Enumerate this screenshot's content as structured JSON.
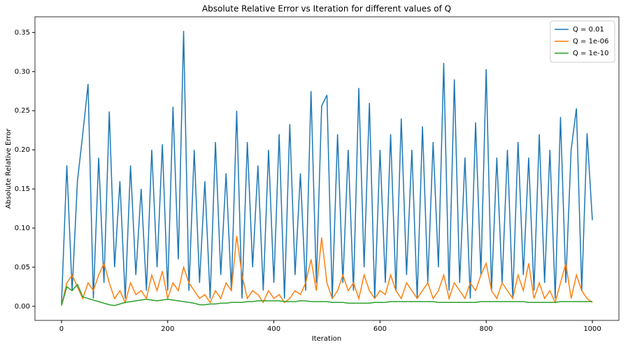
{
  "chart_data": {
    "type": "line",
    "title": "Absolute Relative Error vs Iteration for different values of Q",
    "xlabel": "Iteration",
    "ylabel": "Absolute Relative Error",
    "x": [
      0,
      10,
      20,
      30,
      40,
      50,
      60,
      70,
      80,
      90,
      100,
      110,
      120,
      130,
      140,
      150,
      160,
      170,
      180,
      190,
      200,
      210,
      220,
      230,
      240,
      250,
      260,
      270,
      280,
      290,
      300,
      310,
      320,
      330,
      340,
      350,
      360,
      370,
      380,
      390,
      400,
      410,
      420,
      430,
      440,
      450,
      460,
      470,
      480,
      490,
      500,
      510,
      520,
      530,
      540,
      550,
      560,
      570,
      580,
      590,
      600,
      610,
      620,
      630,
      640,
      650,
      660,
      670,
      680,
      690,
      700,
      710,
      720,
      730,
      740,
      750,
      760,
      770,
      780,
      790,
      800,
      810,
      820,
      830,
      840,
      850,
      860,
      870,
      880,
      890,
      900,
      910,
      920,
      930,
      940,
      950,
      960,
      970,
      980,
      990,
      1000
    ],
    "series": [
      {
        "name": "Q = 0.01",
        "color": "#1f77b4",
        "values": [
          0.003,
          0.18,
          0.02,
          0.16,
          0.22,
          0.284,
          0.01,
          0.19,
          0.03,
          0.249,
          0.05,
          0.16,
          0.01,
          0.18,
          0.04,
          0.15,
          0.02,
          0.2,
          0.05,
          0.207,
          0.02,
          0.255,
          0.06,
          0.352,
          0.02,
          0.2,
          0.03,
          0.16,
          0.01,
          0.21,
          0.04,
          0.17,
          0.02,
          0.25,
          0.01,
          0.21,
          0.05,
          0.18,
          0.02,
          0.2,
          0.03,
          0.22,
          0.01,
          0.233,
          0.04,
          0.17,
          0.02,
          0.275,
          0.03,
          0.256,
          0.27,
          0.01,
          0.22,
          0.03,
          0.2,
          0.02,
          0.279,
          0.05,
          0.26,
          0.01,
          0.2,
          0.03,
          0.22,
          0.02,
          0.24,
          0.04,
          0.2,
          0.01,
          0.23,
          0.03,
          0.21,
          0.05,
          0.311,
          0.02,
          0.29,
          0.03,
          0.19,
          0.01,
          0.235,
          0.04,
          0.303,
          0.02,
          0.19,
          0.03,
          0.2,
          0.01,
          0.21,
          0.04,
          0.19,
          0.02,
          0.22,
          0.03,
          0.2,
          0.01,
          0.242,
          0.03,
          0.2,
          0.253,
          0.02,
          0.221,
          0.11
        ]
      },
      {
        "name": "Q = 1e-06",
        "color": "#ff7f0e",
        "values": [
          0.001,
          0.03,
          0.04,
          0.025,
          0.01,
          0.03,
          0.02,
          0.04,
          0.055,
          0.03,
          0.01,
          0.02,
          0.005,
          0.03,
          0.015,
          0.02,
          0.01,
          0.04,
          0.02,
          0.045,
          0.01,
          0.03,
          0.02,
          0.05,
          0.03,
          0.02,
          0.01,
          0.015,
          0.005,
          0.02,
          0.01,
          0.03,
          0.02,
          0.09,
          0.04,
          0.01,
          0.02,
          0.015,
          0.005,
          0.02,
          0.01,
          0.015,
          0.005,
          0.01,
          0.02,
          0.015,
          0.03,
          0.06,
          0.02,
          0.088,
          0.03,
          0.01,
          0.02,
          0.04,
          0.02,
          0.03,
          0.01,
          0.04,
          0.02,
          0.01,
          0.02,
          0.015,
          0.04,
          0.02,
          0.01,
          0.03,
          0.02,
          0.01,
          0.02,
          0.03,
          0.01,
          0.02,
          0.04,
          0.01,
          0.03,
          0.02,
          0.01,
          0.03,
          0.02,
          0.04,
          0.055,
          0.02,
          0.01,
          0.03,
          0.02,
          0.01,
          0.04,
          0.02,
          0.055,
          0.01,
          0.03,
          0.01,
          0.02,
          0.005,
          0.03,
          0.055,
          0.01,
          0.04,
          0.02,
          0.01,
          0.005
        ]
      },
      {
        "name": "Q = 1e-10",
        "color": "#2ca02c",
        "values": [
          0.001,
          0.025,
          0.02,
          0.028,
          0.012,
          0.01,
          0.008,
          0.006,
          0.004,
          0.002,
          0.001,
          0.003,
          0.005,
          0.006,
          0.007,
          0.008,
          0.009,
          0.008,
          0.007,
          0.008,
          0.009,
          0.008,
          0.007,
          0.006,
          0.005,
          0.004,
          0.002,
          0.002,
          0.003,
          0.003,
          0.004,
          0.004,
          0.005,
          0.005,
          0.005,
          0.006,
          0.006,
          0.007,
          0.007,
          0.007,
          0.007,
          0.007,
          0.006,
          0.006,
          0.006,
          0.007,
          0.007,
          0.006,
          0.006,
          0.006,
          0.006,
          0.005,
          0.005,
          0.005,
          0.004,
          0.004,
          0.004,
          0.004,
          0.004,
          0.005,
          0.005,
          0.005,
          0.006,
          0.006,
          0.006,
          0.006,
          0.006,
          0.006,
          0.006,
          0.006,
          0.006,
          0.005,
          0.005,
          0.005,
          0.005,
          0.005,
          0.005,
          0.005,
          0.005,
          0.006,
          0.006,
          0.006,
          0.006,
          0.006,
          0.006,
          0.006,
          0.006,
          0.006,
          0.005,
          0.005,
          0.005,
          0.005,
          0.005,
          0.005,
          0.006,
          0.006,
          0.006,
          0.006,
          0.006,
          0.006,
          0.006
        ]
      }
    ],
    "xlim": [
      -50,
      1050
    ],
    "xticks": [
      0,
      200,
      400,
      600,
      800,
      1000
    ],
    "ylim": [
      -0.018,
      0.37
    ],
    "yticks": [
      {
        "value": 0,
        "label": "0.00"
      },
      0.05,
      {
        "value": 0.1,
        "label": "0.10"
      },
      0.15,
      {
        "value": 0.2,
        "label": "0.20"
      },
      0.25,
      {
        "value": 0.3,
        "label": "0.30"
      },
      0.35
    ],
    "legend": "upper right"
  }
}
